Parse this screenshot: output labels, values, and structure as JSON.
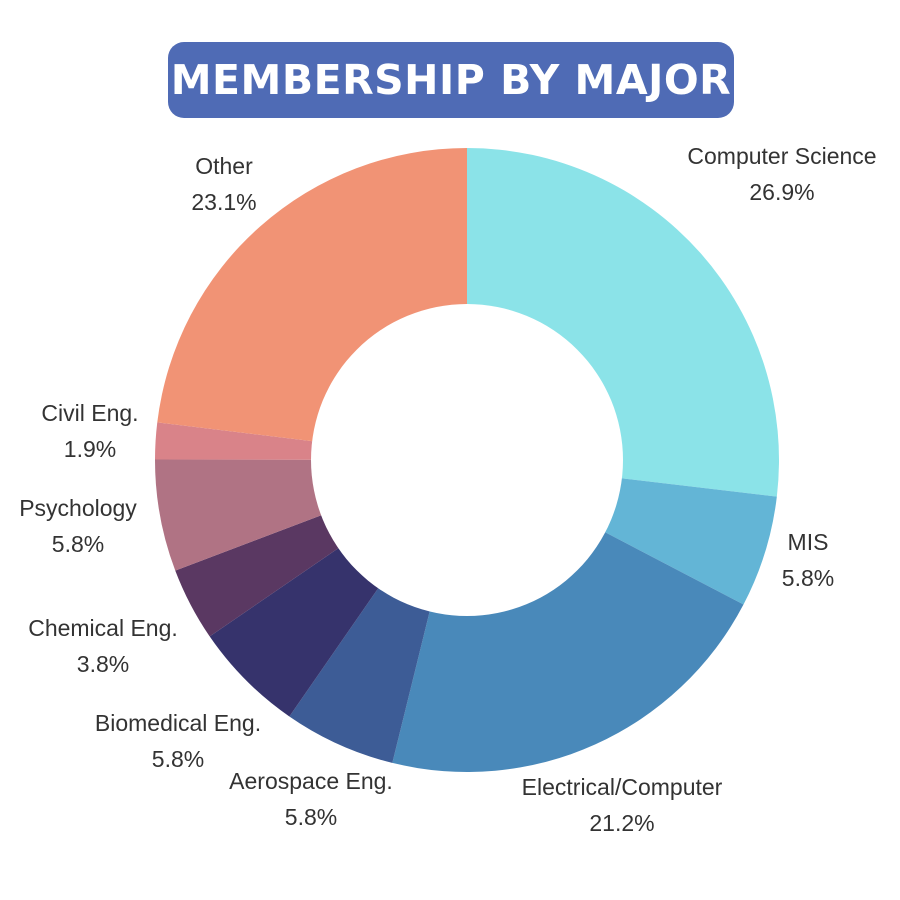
{
  "colors": {
    "title_background": "#4F6BB5",
    "title_text": "#FFFFFF",
    "label_text": "#333333",
    "center_hole": "#FFFFFF"
  },
  "chart_data": {
    "type": "pie",
    "variant": "donut",
    "title": "MEMBERSHIP BY MAJOR",
    "start_angle_degrees": 0,
    "direction": "clockwise",
    "legend": "none",
    "slices": [
      {
        "label": "Computer Science",
        "value": 26.9,
        "value_label": "26.9%",
        "color": "#8BE3E8"
      },
      {
        "label": "MIS",
        "value": 5.8,
        "value_label": "5.8%",
        "color": "#63B5D6"
      },
      {
        "label": "Electrical/Computer",
        "value": 21.2,
        "value_label": "21.2%",
        "color": "#4989BA"
      },
      {
        "label": "Aerospace Eng.",
        "value": 5.8,
        "value_label": "5.8%",
        "color": "#3D5C96"
      },
      {
        "label": "Biomedical Eng.",
        "value": 5.8,
        "value_label": "5.8%",
        "color": "#36336C"
      },
      {
        "label": "Chemical Eng.",
        "value": 3.8,
        "value_label": "3.8%",
        "color": "#5A3862"
      },
      {
        "label": "Psychology",
        "value": 5.8,
        "value_label": "5.8%",
        "color": "#B07384"
      },
      {
        "label": "Civil Eng.",
        "value": 1.9,
        "value_label": "1.9%",
        "color": "#D98389"
      },
      {
        "label": "Other",
        "value": 23.1,
        "value_label": "23.1%",
        "color": "#F19375"
      }
    ]
  }
}
